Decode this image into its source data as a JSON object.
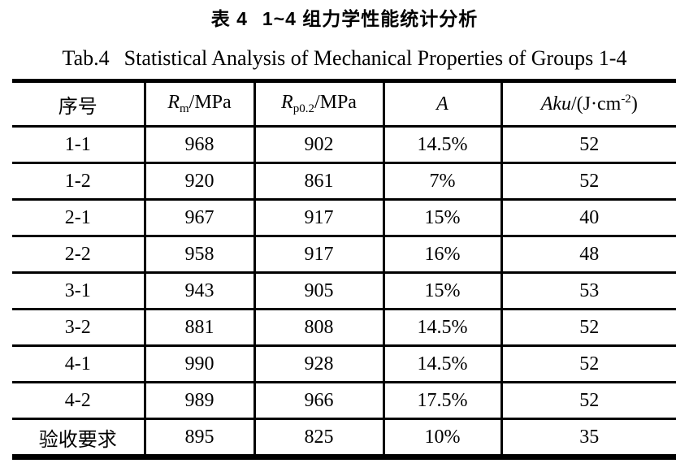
{
  "caption": {
    "cn_label": "表 4",
    "cn_text": "1~4 组力学性能统计分析",
    "en_label": "Tab.4",
    "en_text": "Statistical Analysis of Mechanical Properties of Groups 1-4"
  },
  "table": {
    "headers": {
      "col1": "序号",
      "col2": {
        "base": "R",
        "sub": "m",
        "rest": "/MPa"
      },
      "col3": {
        "base": "R",
        "sub": "p0.2",
        "rest": "/MPa"
      },
      "col4": "A",
      "col5": {
        "base": "Aku",
        "rest": "/(J·cm",
        "sup": "-2",
        "close": ")"
      }
    },
    "rows": [
      {
        "id": "1-1",
        "rm": "968",
        "rp": "902",
        "a": "14.5%",
        "aku": "52"
      },
      {
        "id": "1-2",
        "rm": "920",
        "rp": "861",
        "a": "7%",
        "aku": "52"
      },
      {
        "id": "2-1",
        "rm": "967",
        "rp": "917",
        "a": "15%",
        "aku": "40"
      },
      {
        "id": "2-2",
        "rm": "958",
        "rp": "917",
        "a": "16%",
        "aku": "48"
      },
      {
        "id": "3-1",
        "rm": "943",
        "rp": "905",
        "a": "15%",
        "aku": "53"
      },
      {
        "id": "3-2",
        "rm": "881",
        "rp": "808",
        "a": "14.5%",
        "aku": "52"
      },
      {
        "id": "4-1",
        "rm": "990",
        "rp": "928",
        "a": "14.5%",
        "aku": "52"
      },
      {
        "id": "4-2",
        "rm": "989",
        "rp": "966",
        "a": "17.5%",
        "aku": "52"
      },
      {
        "id": "验收要求",
        "rm": "895",
        "rp": "825",
        "a": "10%",
        "aku": "35"
      }
    ],
    "colors": {
      "border": "#000000",
      "text": "#000000",
      "background": "#ffffff"
    }
  }
}
